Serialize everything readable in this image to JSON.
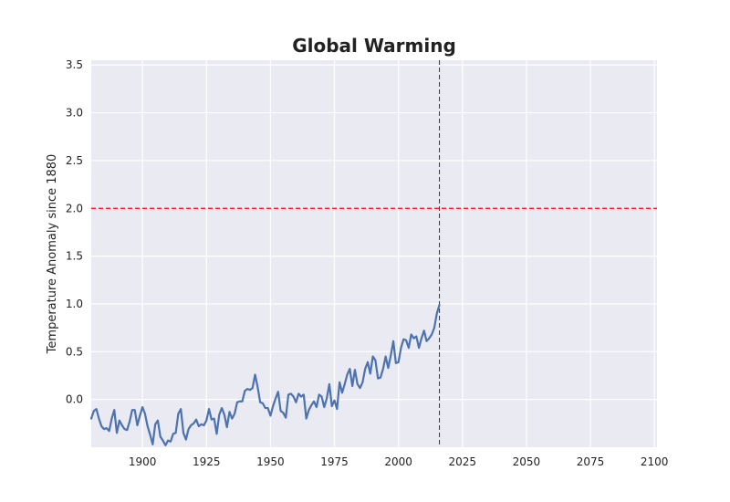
{
  "chart_data": {
    "type": "line",
    "title": "Global Warming",
    "xlabel": "",
    "ylabel": "Temperature Anomaly since 1880",
    "xlim": [
      1880,
      2101
    ],
    "ylim": [
      -0.5,
      3.55
    ],
    "xticks": [
      1900,
      1925,
      1950,
      1975,
      2000,
      2025,
      2050,
      2075,
      2100
    ],
    "yticks": [
      0.0,
      0.5,
      1.0,
      1.5,
      2.0,
      2.5,
      3.0,
      3.5
    ],
    "xtick_labels": [
      "1900",
      "1925",
      "1950",
      "1975",
      "2000",
      "2025",
      "2050",
      "2075",
      "2100"
    ],
    "ytick_labels": [
      "0.0",
      "0.5",
      "1.0",
      "1.5",
      "2.0",
      "2.5",
      "3.0",
      "3.5"
    ],
    "grid": true,
    "colors": {
      "line": "#4c72b0",
      "background": "#eaeaf2",
      "grid": "#ffffff",
      "threshold": "#ff0000",
      "vline": "#444444"
    },
    "hline": {
      "y": 2.0,
      "style": "dashed"
    },
    "vline": {
      "x": 2016,
      "style": "dashed"
    },
    "series": [
      {
        "x": [
          1880,
          1881,
          1882,
          1883,
          1884,
          1885,
          1886,
          1887,
          1888,
          1889,
          1890,
          1891,
          1892,
          1893,
          1894,
          1895,
          1896,
          1897,
          1898,
          1899,
          1900,
          1901,
          1902,
          1903,
          1904,
          1905,
          1906,
          1907,
          1908,
          1909,
          1910,
          1911,
          1912,
          1913,
          1914,
          1915,
          1916,
          1917,
          1918,
          1919,
          1920,
          1921,
          1922,
          1923,
          1924,
          1925,
          1926,
          1927,
          1928,
          1929,
          1930,
          1931,
          1932,
          1933,
          1934,
          1935,
          1936,
          1937,
          1938,
          1939,
          1940,
          1941,
          1942,
          1943,
          1944,
          1945,
          1946,
          1947,
          1948,
          1949,
          1950,
          1951,
          1952,
          1953,
          1954,
          1955,
          1956,
          1957,
          1958,
          1959,
          1960,
          1961,
          1962,
          1963,
          1964,
          1965,
          1966,
          1967,
          1968,
          1969,
          1970,
          1971,
          1972,
          1973,
          1974,
          1975,
          1976,
          1977,
          1978,
          1979,
          1980,
          1981,
          1982,
          1983,
          1984,
          1985,
          1986,
          1987,
          1988,
          1989,
          1990,
          1991,
          1992,
          1993,
          1994,
          1995,
          1996,
          1997,
          1998,
          1999,
          2000,
          2001,
          2002,
          2003,
          2004,
          2005,
          2006,
          2007,
          2008,
          2009,
          2010,
          2011,
          2012,
          2013,
          2014,
          2015,
          2016
        ],
        "y": [
          -0.2,
          -0.12,
          -0.1,
          -0.2,
          -0.28,
          -0.31,
          -0.3,
          -0.33,
          -0.2,
          -0.11,
          -0.35,
          -0.22,
          -0.27,
          -0.31,
          -0.32,
          -0.23,
          -0.11,
          -0.11,
          -0.27,
          -0.17,
          -0.08,
          -0.15,
          -0.28,
          -0.37,
          -0.47,
          -0.26,
          -0.22,
          -0.39,
          -0.43,
          -0.48,
          -0.43,
          -0.44,
          -0.36,
          -0.35,
          -0.15,
          -0.1,
          -0.35,
          -0.42,
          -0.31,
          -0.27,
          -0.25,
          -0.21,
          -0.28,
          -0.26,
          -0.27,
          -0.22,
          -0.1,
          -0.21,
          -0.2,
          -0.36,
          -0.16,
          -0.09,
          -0.16,
          -0.29,
          -0.13,
          -0.2,
          -0.15,
          -0.03,
          -0.02,
          -0.02,
          0.09,
          0.11,
          0.1,
          0.12,
          0.26,
          0.13,
          -0.03,
          -0.04,
          -0.09,
          -0.09,
          -0.17,
          -0.07,
          0.01,
          0.08,
          -0.12,
          -0.14,
          -0.19,
          0.05,
          0.06,
          0.03,
          -0.03,
          0.06,
          0.03,
          0.05,
          -0.2,
          -0.11,
          -0.06,
          -0.02,
          -0.08,
          0.05,
          0.03,
          -0.08,
          0.01,
          0.16,
          -0.07,
          -0.01,
          -0.1,
          0.18,
          0.07,
          0.16,
          0.26,
          0.32,
          0.14,
          0.31,
          0.16,
          0.12,
          0.18,
          0.32,
          0.39,
          0.27,
          0.45,
          0.41,
          0.22,
          0.23,
          0.32,
          0.45,
          0.33,
          0.46,
          0.61,
          0.38,
          0.39,
          0.54,
          0.63,
          0.62,
          0.54,
          0.68,
          0.64,
          0.66,
          0.54,
          0.64,
          0.72,
          0.61,
          0.64,
          0.68,
          0.75,
          0.9,
          0.99
        ]
      }
    ]
  }
}
